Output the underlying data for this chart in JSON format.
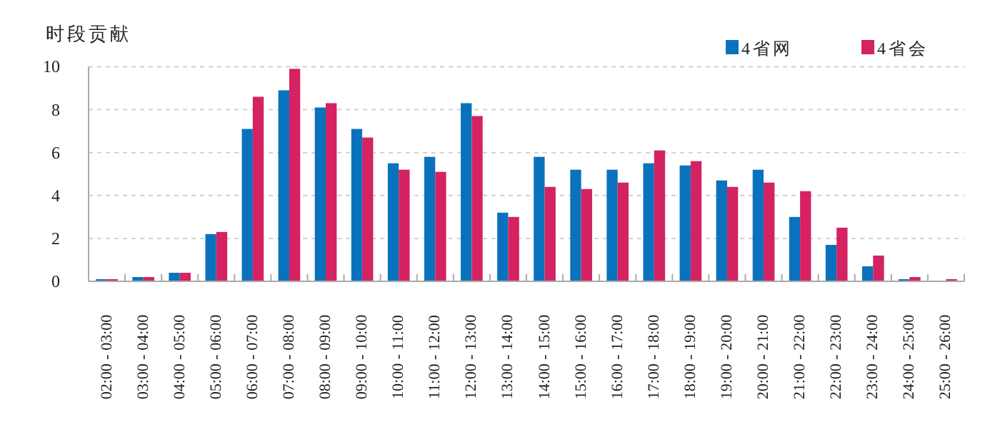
{
  "chart_data": {
    "type": "bar",
    "ylabel": "时段贡献",
    "categories": [
      "02:00 - 03:00",
      "03:00 - 04:00",
      "04:00 - 05:00",
      "05:00 - 06:00",
      "06:00 - 07:00",
      "07:00 - 08:00",
      "08:00 - 09:00",
      "09:00 - 10:00",
      "10:00 - 11:00",
      "11:00 - 12:00",
      "12:00 - 13:00",
      "13:00 - 14:00",
      "14:00 - 15:00",
      "15:00 - 16:00",
      "16:00 - 17:00",
      "17:00 - 18:00",
      "18:00 - 19:00",
      "19:00 - 20:00",
      "20:00 - 21:00",
      "21:00 - 22:00",
      "22:00 - 23:00",
      "23:00 - 24:00",
      "24:00 - 25:00",
      "25:00 - 26:00"
    ],
    "series": [
      {
        "name": "4省网",
        "color": "#0a72bd",
        "values": [
          0.1,
          0.2,
          0.4,
          2.2,
          7.1,
          8.9,
          8.1,
          7.1,
          5.5,
          5.8,
          8.3,
          3.2,
          5.8,
          5.2,
          5.2,
          5.5,
          5.4,
          4.7,
          5.2,
          3.0,
          1.7,
          0.7,
          0.1,
          0
        ]
      },
      {
        "name": "4省会",
        "color": "#d42263",
        "values": [
          0.1,
          0.2,
          0.4,
          2.3,
          8.6,
          9.9,
          8.3,
          6.7,
          5.2,
          5.1,
          7.7,
          3.0,
          4.4,
          4.3,
          4.6,
          6.1,
          5.6,
          4.4,
          4.6,
          4.2,
          2.5,
          1.2,
          0.2,
          0.1
        ]
      }
    ],
    "ylim": [
      0,
      10
    ],
    "yticks": [
      0,
      2,
      4,
      6,
      8,
      10
    ],
    "grid": "y",
    "legend": "top right"
  }
}
